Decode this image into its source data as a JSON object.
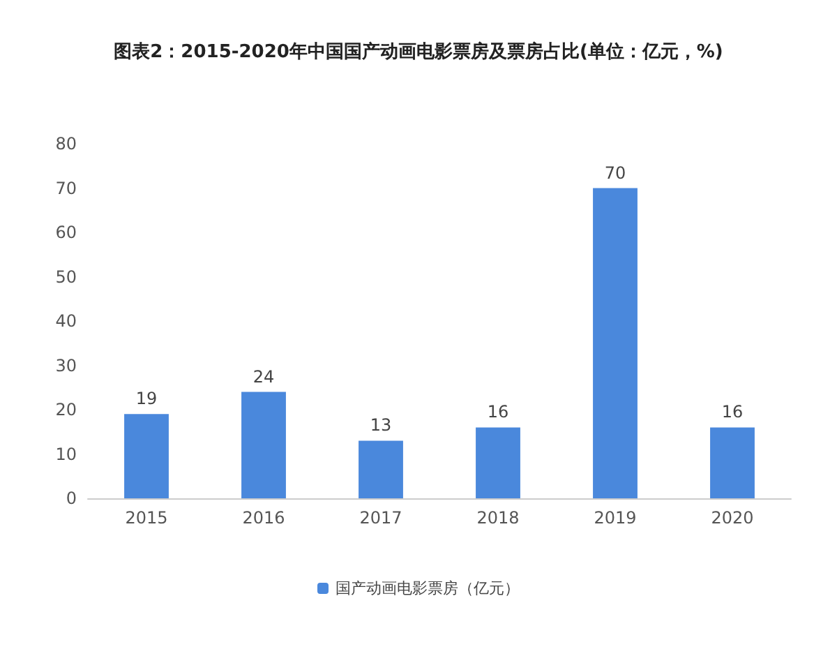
{
  "chart_data": {
    "type": "bar",
    "title": "图表2：2015-2020年中国国产动画电影票房及票房占比(单位：亿元，%)",
    "categories": [
      "2015",
      "2016",
      "2017",
      "2018",
      "2019",
      "2020"
    ],
    "series": [
      {
        "name": "国产动画电影票房（亿元）",
        "color": "#4a88dc",
        "values": [
          19,
          24,
          13,
          16,
          70,
          16
        ]
      }
    ],
    "ylim": [
      0,
      80
    ],
    "yticks": [
      0,
      10,
      20,
      30,
      40,
      50,
      60,
      70,
      80
    ],
    "grid": false,
    "legend": "bottom",
    "data_labels": true
  }
}
